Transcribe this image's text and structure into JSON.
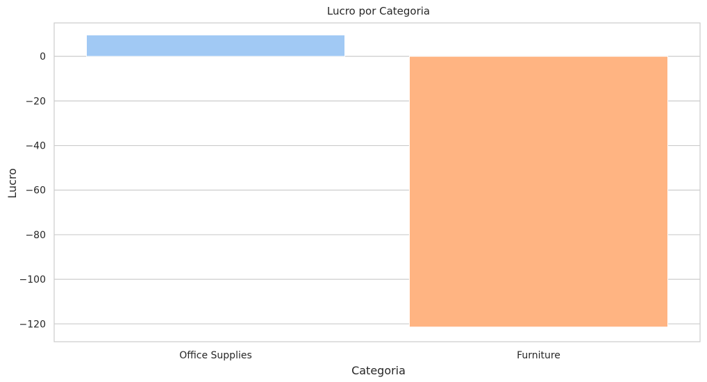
{
  "chart_data": {
    "type": "bar",
    "title": "Lucro por Categoria",
    "xlabel": "Categoria",
    "ylabel": "Lucro",
    "categories": [
      "Office Supplies",
      "Furniture"
    ],
    "values": [
      9.6,
      -121.4
    ],
    "colors": [
      "#a1c9f4",
      "#ffb482"
    ],
    "ylim": [
      -128,
      15
    ],
    "yticks": [
      0,
      -20,
      -40,
      -60,
      -80,
      -100,
      -120
    ],
    "ytick_labels": [
      "0",
      "−20",
      "−40",
      "−60",
      "−80",
      "−100",
      "−120"
    ],
    "grid": true,
    "grid_axis": "y",
    "grid_color": "#cccccc",
    "spine_color": "#cccccc",
    "legend": "none"
  }
}
